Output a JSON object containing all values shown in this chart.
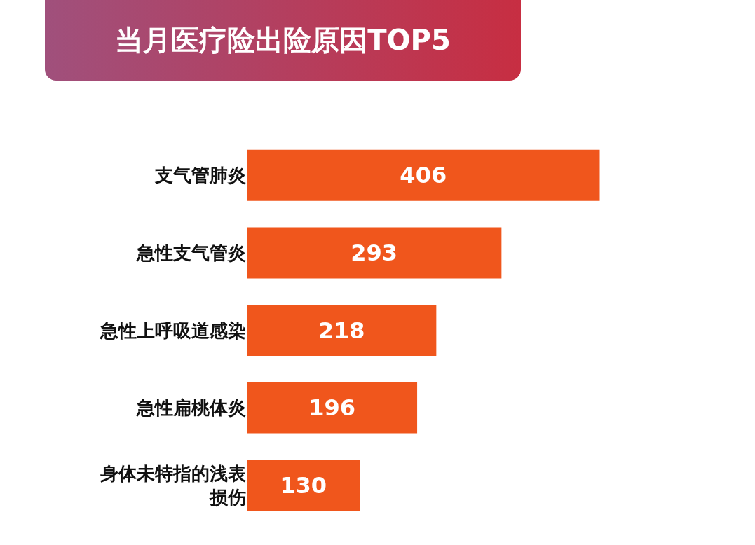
{
  "chart_data": {
    "type": "bar",
    "orientation": "horizontal",
    "title": "当月医疗险出险原因TOP5",
    "categories": [
      "支气管肺炎",
      "急性支气管炎",
      "急性上呼吸道感染",
      "急性扁桃体炎",
      "身体未特指的浅表损伤"
    ],
    "values": [
      406,
      293,
      218,
      196,
      130
    ],
    "color": "#f0561c",
    "data_labels": true,
    "tick_labels": "y"
  }
}
